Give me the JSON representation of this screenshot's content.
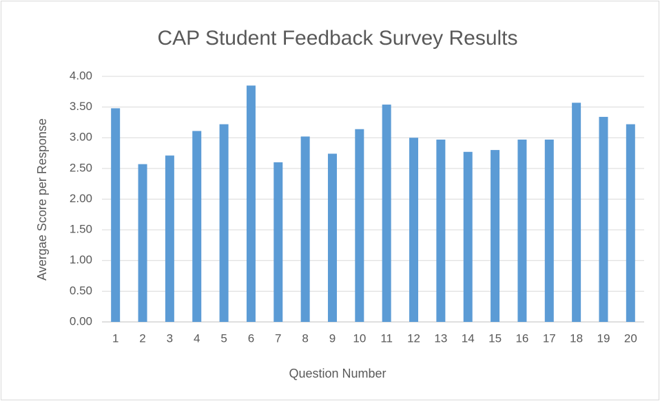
{
  "chart_data": {
    "type": "bar",
    "title": "CAP Student Feedback Survey Results",
    "x_label": "Question Number",
    "y_label": "Avergae Score per Response",
    "categories": [
      "1",
      "2",
      "3",
      "4",
      "5",
      "6",
      "7",
      "8",
      "9",
      "10",
      "11",
      "12",
      "13",
      "14",
      "15",
      "16",
      "17",
      "18",
      "19",
      "20"
    ],
    "values": [
      3.48,
      2.57,
      2.71,
      3.11,
      3.22,
      3.85,
      2.6,
      3.02,
      2.74,
      3.14,
      3.54,
      3.0,
      2.97,
      2.77,
      2.8,
      2.97,
      2.97,
      3.57,
      3.34,
      3.22
    ],
    "color": "#5b9bd5",
    "ylim": [
      0,
      4
    ],
    "yticks": [
      {
        "value": 0,
        "label": "0.00"
      },
      {
        "value": 0.5,
        "label": "0.50"
      },
      {
        "value": 1,
        "label": "1.00"
      },
      {
        "value": 1.5,
        "label": "1.50"
      },
      {
        "value": 2,
        "label": "2.00"
      },
      {
        "value": 2.5,
        "label": "2.50"
      },
      {
        "value": 3,
        "label": "3.00"
      },
      {
        "value": 3.5,
        "label": "3.50"
      },
      {
        "value": 4,
        "label": "4.00"
      }
    ],
    "grid": true
  }
}
